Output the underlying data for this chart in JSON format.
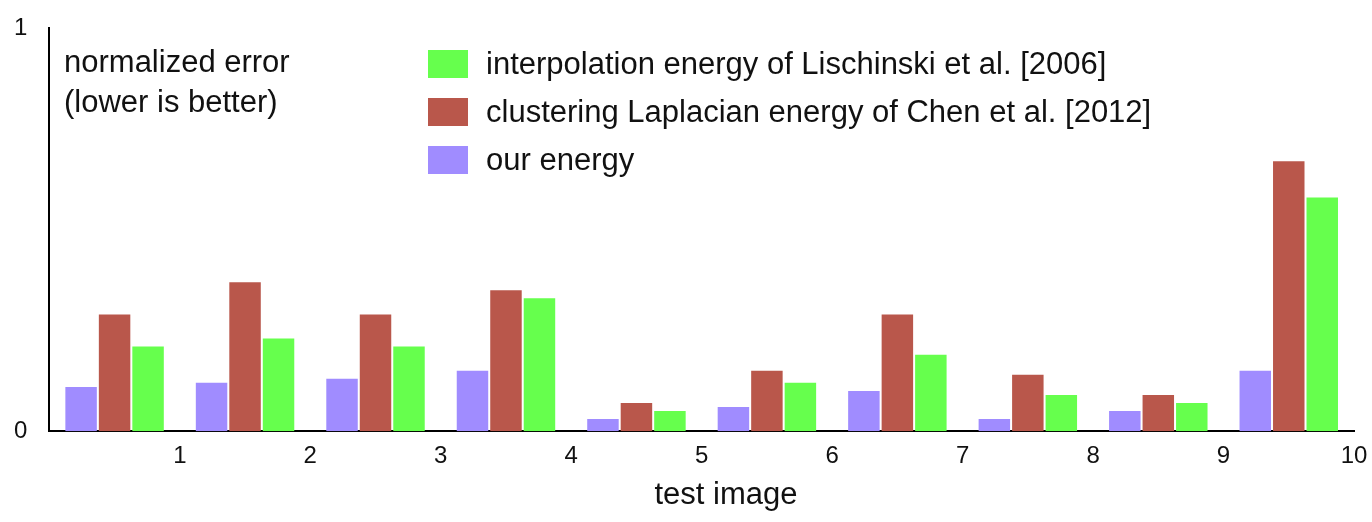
{
  "chart_data": {
    "type": "bar",
    "xlabel": "test image",
    "ylabel": "normalized error\n(lower is better)",
    "x": [
      0.5,
      1.5,
      2.5,
      3.5,
      4.5,
      5.5,
      6.5,
      7.5,
      8.5,
      9.5
    ],
    "xlim": [
      0,
      10
    ],
    "xticks": [
      1,
      2,
      3,
      4,
      5,
      6,
      7,
      8,
      9,
      10
    ],
    "series": [
      {
        "name": "our energy",
        "color": "#a08cff",
        "values": [
          0.11,
          0.12,
          0.13,
          0.15,
          0.03,
          0.06,
          0.1,
          0.03,
          0.05,
          0.15
        ]
      },
      {
        "name": "clustering Laplacian energy of Chen et al. [2012]",
        "color": "#b9574b",
        "values": [
          0.29,
          0.37,
          0.29,
          0.35,
          0.07,
          0.15,
          0.29,
          0.14,
          0.09,
          0.67
        ]
      },
      {
        "name": "interpolation energy of Lischinski et al. [2006]",
        "color": "#66ff4d",
        "values": [
          0.21,
          0.23,
          0.21,
          0.33,
          0.05,
          0.12,
          0.19,
          0.09,
          0.07,
          0.58
        ]
      }
    ],
    "ylim": [
      0,
      1
    ],
    "yticks": [
      0,
      1
    ],
    "legend": "top"
  }
}
